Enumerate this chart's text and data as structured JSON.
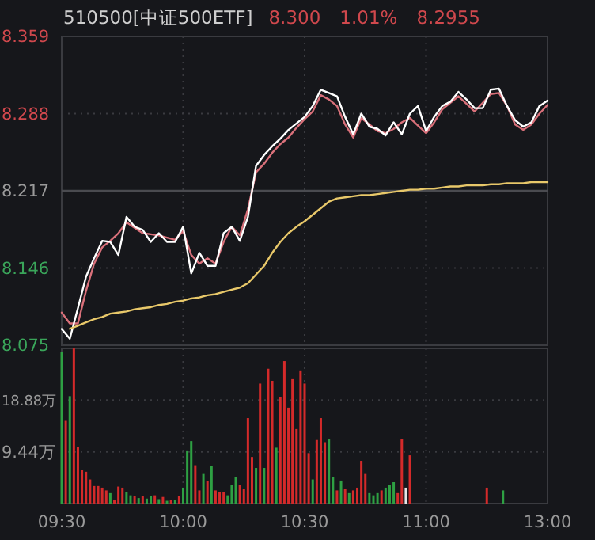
{
  "chart_data": [
    {
      "type": "line",
      "title": "510500[中证500ETF]",
      "annotations": [
        "8.300",
        "1.01%",
        "8.2955"
      ],
      "categories": [
        null,
        null,
        null,
        null,
        null,
        null,
        null,
        null,
        null,
        null,
        null,
        null,
        null,
        null,
        null,
        null,
        null,
        null,
        null,
        null,
        null,
        null,
        null,
        null,
        null,
        null,
        null,
        null,
        null,
        null,
        null,
        null,
        null,
        null,
        null,
        null,
        null,
        null,
        null,
        null,
        null,
        null,
        null,
        null,
        null,
        null,
        null,
        null,
        null,
        null,
        null,
        null,
        null,
        null,
        null,
        null,
        null,
        null,
        null,
        null,
        null
      ],
      "ylim": [
        8.075,
        8.359
      ],
      "yticks": [
        8.075,
        8.146,
        8.217,
        8.288,
        8.359
      ],
      "grid": true,
      "line_style": "solid",
      "ref_lines": [
        {
          "axis": "y",
          "value": 8.217,
          "color": "#4a4b50"
        }
      ],
      "series": [
        {
          "color": "#d9707a",
          "values": [
            8.105,
            8.095,
            8.095,
            8.125,
            8.15,
            8.165,
            8.171,
            8.178,
            8.188,
            8.183,
            8.178,
            8.177,
            8.176,
            8.174,
            8.172,
            8.18,
            8.158,
            8.15,
            8.155,
            8.15,
            8.17,
            8.184,
            8.176,
            8.2,
            8.234,
            8.242,
            8.252,
            8.26,
            8.266,
            8.275,
            8.283,
            8.29,
            8.305,
            8.301,
            8.295,
            8.278,
            8.266,
            8.284,
            8.278,
            8.272,
            8.27,
            8.274,
            8.28,
            8.284,
            8.277,
            8.27,
            8.28,
            8.292,
            8.298,
            8.304,
            8.297,
            8.29,
            8.298,
            8.306,
            8.307,
            8.295,
            8.278,
            8.273,
            8.278,
            8.288,
            8.296
          ]
        },
        {
          "color": "#ffffff",
          "values": [
            8.09,
            8.081,
            8.109,
            8.138,
            8.155,
            8.171,
            8.17,
            8.158,
            8.193,
            8.184,
            8.181,
            8.17,
            8.178,
            8.17,
            8.17,
            8.184,
            8.141,
            8.16,
            8.148,
            8.148,
            8.178,
            8.184,
            8.171,
            8.193,
            8.24,
            8.25,
            8.258,
            8.265,
            8.273,
            8.279,
            8.285,
            8.295,
            8.31,
            8.307,
            8.304,
            8.285,
            8.269,
            8.288,
            8.276,
            8.274,
            8.268,
            8.28,
            8.269,
            8.288,
            8.295,
            8.272,
            8.285,
            8.295,
            8.299,
            8.308,
            8.301,
            8.293,
            8.293,
            8.31,
            8.311,
            8.295,
            8.282,
            8.276,
            8.28,
            8.295,
            8.3
          ]
        },
        {
          "color": "#e8c86a",
          "values": [
            null,
            8.09,
            8.093,
            8.096,
            8.099,
            8.101,
            8.104,
            8.105,
            8.106,
            8.108,
            8.109,
            8.11,
            8.112,
            8.113,
            8.115,
            8.116,
            8.118,
            8.119,
            8.121,
            8.122,
            8.124,
            8.126,
            8.128,
            8.132,
            8.14,
            8.148,
            8.16,
            8.17,
            8.178,
            8.184,
            8.189,
            8.195,
            8.201,
            8.207,
            8.21,
            8.211,
            8.212,
            8.213,
            8.213,
            8.214,
            8.215,
            8.216,
            8.217,
            8.218,
            8.218,
            8.219,
            8.219,
            8.22,
            8.221,
            8.221,
            8.222,
            8.222,
            8.222,
            8.223,
            8.223,
            8.224,
            8.224,
            8.224,
            8.225,
            8.225,
            8.225
          ]
        }
      ]
    },
    {
      "type": "bar",
      "categories": [
        "09:30",
        null,
        null,
        null,
        null,
        null,
        null,
        null,
        null,
        null,
        null,
        null,
        null,
        null,
        null,
        null,
        null,
        null,
        null,
        null,
        null,
        null,
        null,
        null,
        null,
        null,
        null,
        null,
        null,
        null,
        "10:00",
        null,
        null,
        null,
        null,
        null,
        null,
        null,
        null,
        null,
        null,
        null,
        null,
        null,
        null,
        null,
        null,
        null,
        null,
        null,
        null,
        null,
        null,
        null,
        null,
        null,
        null,
        null,
        null,
        null,
        "10:30",
        null,
        null,
        null,
        null,
        null,
        null,
        null,
        null,
        null,
        null,
        null,
        null,
        null,
        null,
        null,
        null,
        null,
        null,
        null,
        null,
        null,
        null,
        null,
        null,
        null,
        null,
        null,
        null,
        null,
        "11:00",
        null,
        null,
        null,
        null,
        null,
        null,
        null,
        null,
        null,
        null,
        null,
        null,
        null,
        null,
        null,
        null,
        null,
        null,
        null,
        null,
        null,
        null,
        null,
        null,
        null,
        null,
        null,
        null,
        null,
        "13:00"
      ],
      "ylim": [
        0,
        28.32
      ],
      "yticks": [
        {
          "value": 9.44,
          "label": "9.44万"
        },
        {
          "value": 18.88,
          "label": "18.88万"
        }
      ],
      "grid": true,
      "values": [
        27.7,
        15.1,
        19.6,
        28.3,
        10.4,
        6.1,
        5.8,
        4.4,
        3.2,
        3.2,
        2.9,
        2.4,
        1.9,
        0.7,
        3.1,
        2.9,
        2.1,
        1.5,
        1.3,
        1.0,
        1.3,
        0.9,
        1.3,
        1.5,
        0.8,
        1.2,
        0.5,
        0.7,
        0.7,
        1.4,
        2.9,
        9.7,
        11.4,
        7.0,
        2.4,
        5.4,
        4.1,
        6.8,
        2.4,
        2.1,
        2.1,
        1.5,
        3.4,
        4.9,
        3.4,
        2.6,
        15.6,
        8.5,
        6.5,
        21.9,
        6.5,
        24.6,
        22.4,
        10.2,
        19.5,
        26.0,
        17.5,
        22.7,
        13.6,
        24.3,
        21.9,
        9.2,
        4.4,
        11.6,
        15.6,
        11.2,
        11.7,
        4.9,
        2.4,
        4.2,
        2.6,
        1.9,
        2.4,
        2.9,
        7.8,
        5.4,
        1.9,
        1.5,
        1.9,
        2.4,
        2.9,
        3.4,
        3.9,
        1.9,
        11.7,
        2.9,
        8.8,
        null,
        null,
        null,
        null,
        null,
        null,
        null,
        null,
        null,
        null,
        null,
        null,
        null,
        null,
        null,
        null,
        null,
        null,
        2.9,
        null,
        null,
        null,
        2.4,
        null,
        null,
        null,
        null,
        null,
        null,
        null,
        null,
        null,
        null,
        null
      ],
      "colors": [
        "#2ea043",
        "#d42a2a",
        "#2ea043",
        "#d42a2a",
        "#d42a2a",
        "#d42a2a",
        "#d42a2a",
        "#d42a2a",
        "#d42a2a",
        "#d42a2a",
        "#d42a2a",
        "#d42a2a",
        "#2ea043",
        "#d42a2a",
        "#d42a2a",
        "#d42a2a",
        "#2ea043",
        "#2ea043",
        "#d42a2a",
        "#2ea043",
        "#d42a2a",
        "#2ea043",
        "#2ea043",
        "#d42a2a",
        "#2ea043",
        "#d42a2a",
        "#2ea043",
        "#d42a2a",
        "#2ea043",
        "#d42a2a",
        "#2ea043",
        "#2ea043",
        "#2ea043",
        "#d42a2a",
        "#d42a2a",
        "#2ea043",
        "#d42a2a",
        "#2ea043",
        "#d42a2a",
        "#d42a2a",
        "#d42a2a",
        "#2ea043",
        "#2ea043",
        "#2ea043",
        "#d42a2a",
        "#d42a2a",
        "#d42a2a",
        "#d42a2a",
        "#2ea043",
        "#d42a2a",
        "#2ea043",
        "#d42a2a",
        "#d42a2a",
        "#2ea043",
        "#d42a2a",
        "#d42a2a",
        "#d42a2a",
        "#d42a2a",
        "#d42a2a",
        "#d42a2a",
        "#d42a2a",
        "#d42a2a",
        "#2ea043",
        "#d42a2a",
        "#d42a2a",
        "#d42a2a",
        "#2ea043",
        "#2ea043",
        "#d42a2a",
        "#2ea043",
        "#d42a2a",
        "#2ea043",
        "#d42a2a",
        "#d42a2a",
        "#d42a2a",
        "#d42a2a",
        "#2ea043",
        "#2ea043",
        "#2ea043",
        "#d42a2a",
        "#2ea043",
        "#2ea043",
        "#2ea043",
        "#d42a2a",
        "#d42a2a",
        "#e6e6e6",
        "#d42a2a",
        null,
        null,
        null,
        null,
        null,
        null,
        null,
        null,
        null,
        null,
        null,
        null,
        null,
        null,
        null,
        null,
        null,
        null,
        "#d42a2a",
        null,
        null,
        null,
        "#2ea043",
        null,
        null,
        null,
        null,
        null,
        null,
        null,
        null,
        null,
        null,
        null
      ]
    }
  ]
}
